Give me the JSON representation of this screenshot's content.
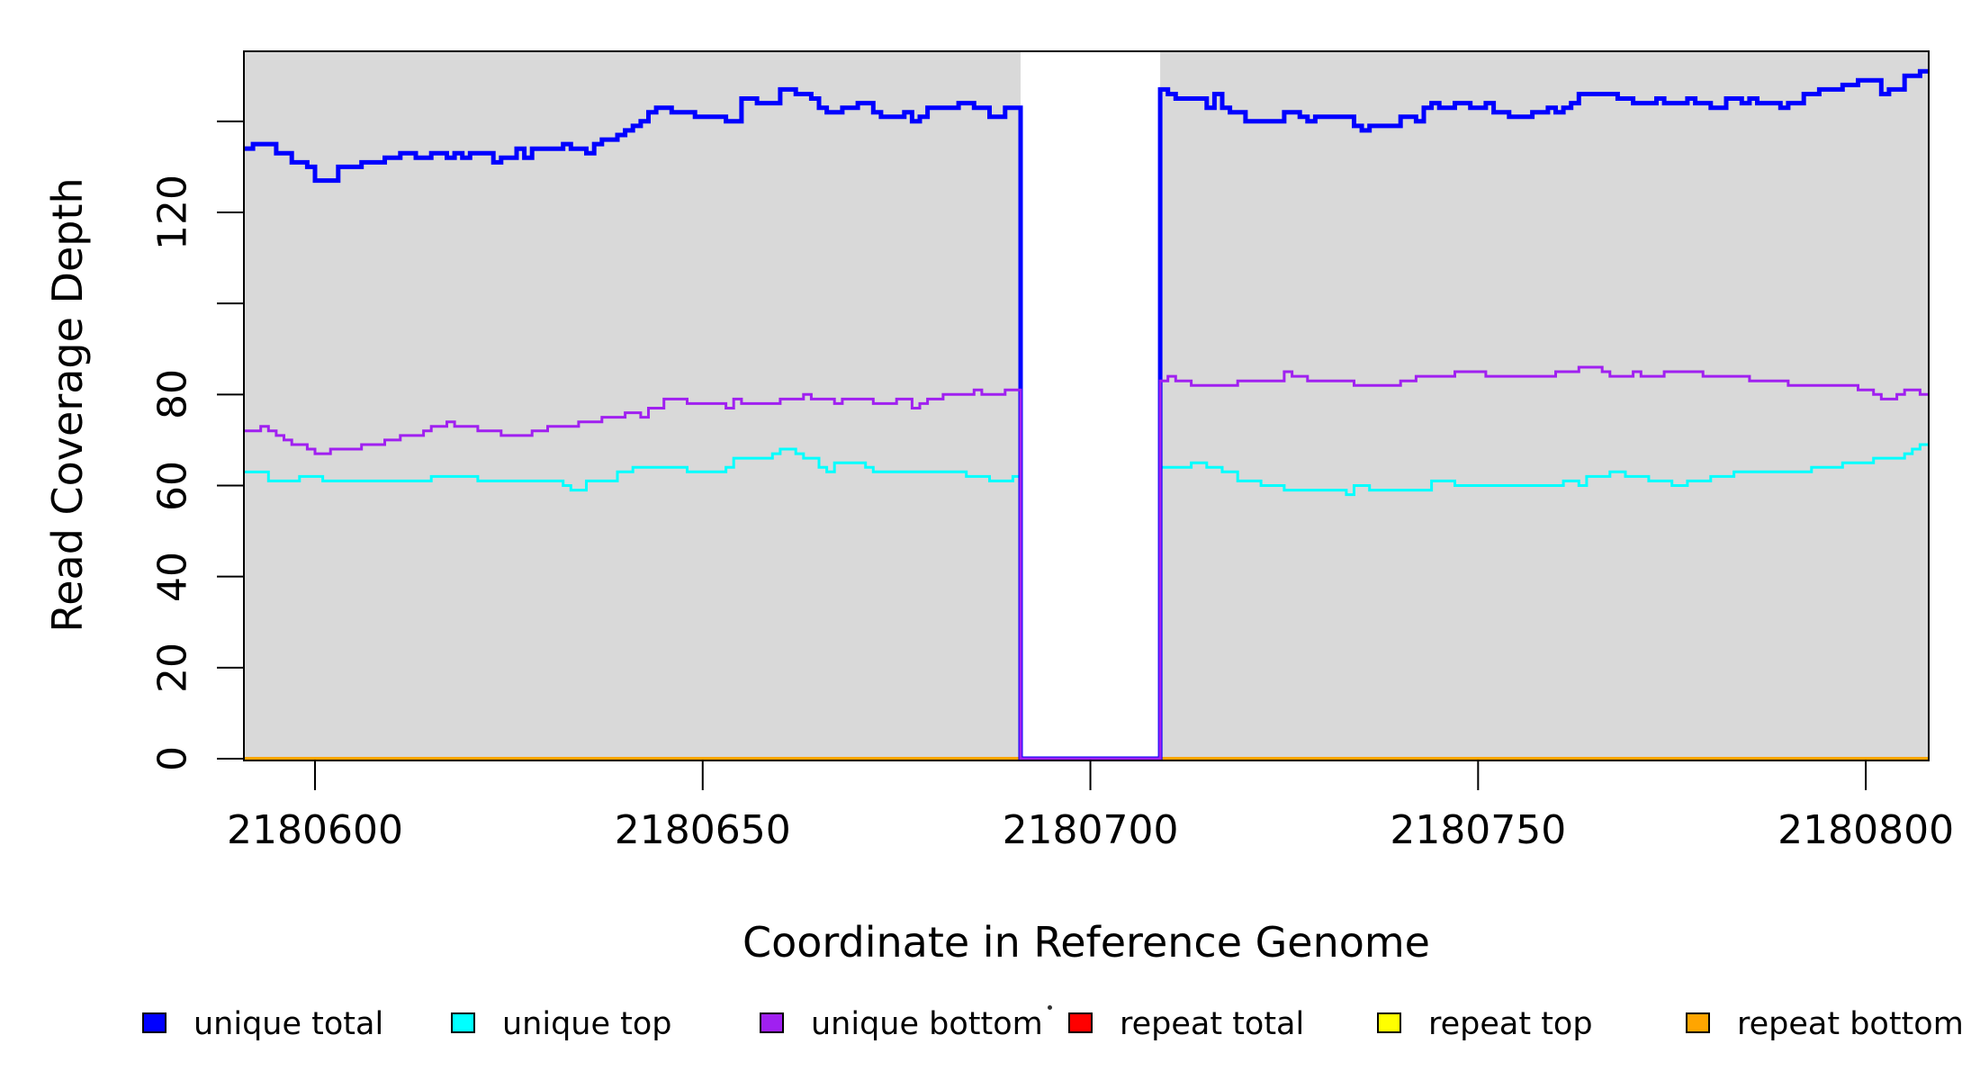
{
  "y_axis": {
    "title": "Read Coverage Depth",
    "ticks": [
      {
        "value": 0,
        "label": "0"
      },
      {
        "value": 20,
        "label": "20"
      },
      {
        "value": 40,
        "label": "40"
      },
      {
        "value": 60,
        "label": "60"
      },
      {
        "value": 80,
        "label": "80"
      },
      {
        "value": 100,
        "label": ""
      },
      {
        "value": 120,
        "label": "120"
      },
      {
        "value": 140,
        "label": ""
      }
    ]
  },
  "x_axis": {
    "title": "Coordinate in Reference Genome",
    "ticks": [
      {
        "value": 2180600,
        "label": "2180600"
      },
      {
        "value": 2180650,
        "label": "2180650"
      },
      {
        "value": 2180700,
        "label": "2180700"
      },
      {
        "value": 2180750,
        "label": "2180750"
      },
      {
        "value": 2180800,
        "label": "2180800"
      }
    ]
  },
  "legend": {
    "items": [
      {
        "label": "unique total",
        "color": "#0000FF"
      },
      {
        "label": "unique top",
        "color": "#00FFFF"
      },
      {
        "label": "unique bottom",
        "color": "#A020F0"
      },
      {
        "label": "repeat total",
        "color": "#FF0000"
      },
      {
        "label": "repeat top",
        "color": "#FFFF00"
      },
      {
        "label": "repeat bottom",
        "color": "#FFA500"
      }
    ]
  },
  "chart_data": {
    "type": "line",
    "subtype": "step",
    "title": "",
    "xlabel": "Coordinate in Reference Genome",
    "ylabel": "Read Coverage Depth",
    "x_start": 2180591,
    "x_step": 1,
    "xlim": [
      2180591,
      2180809
    ],
    "ylim": [
      0,
      155
    ],
    "grid": false,
    "legend_position": "bottom-horizontal",
    "plot_background": "#D9D9D9",
    "zero_gap": {
      "x_start": 2180691,
      "x_end": 2180708,
      "color": "#FFFFFF"
    },
    "series": [
      {
        "name": "repeat total",
        "color": "#FF0000",
        "width": 3,
        "constant": 0
      },
      {
        "name": "repeat top",
        "color": "#FFFF00",
        "width": 3,
        "constant": 0
      },
      {
        "name": "repeat bottom",
        "color": "#FFA500",
        "width": 4,
        "constant": 0
      },
      {
        "name": "unique top",
        "color": "#00FFFF",
        "width": 3,
        "values": [
          63,
          63,
          63,
          61,
          61,
          61,
          61,
          62,
          62,
          62,
          61,
          61,
          61,
          61,
          61,
          61,
          61,
          61,
          61,
          61,
          61,
          61,
          61,
          61,
          62,
          62,
          62,
          62,
          62,
          62,
          61,
          61,
          61,
          61,
          61,
          61,
          61,
          61,
          61,
          61,
          61,
          60,
          59,
          59,
          61,
          61,
          61,
          61,
          63,
          63,
          64,
          64,
          64,
          64,
          64,
          64,
          64,
          63,
          63,
          63,
          63,
          63,
          64,
          66,
          66,
          66,
          66,
          66,
          67,
          68,
          68,
          67,
          66,
          66,
          64,
          63,
          65,
          65,
          65,
          65,
          64,
          63,
          63,
          63,
          63,
          63,
          63,
          63,
          63,
          63,
          63,
          63,
          63,
          62,
          62,
          62,
          61,
          61,
          61,
          62,
          0,
          0,
          0,
          0,
          0,
          0,
          0,
          0,
          0,
          0,
          0,
          0,
          0,
          0,
          0,
          0,
          0,
          0,
          64,
          64,
          64,
          64,
          65,
          65,
          64,
          64,
          63,
          63,
          61,
          61,
          61,
          60,
          60,
          60,
          59,
          59,
          59,
          59,
          59,
          59,
          59,
          59,
          58,
          60,
          60,
          59,
          59,
          59,
          59,
          59,
          59,
          59,
          59,
          61,
          61,
          61,
          60,
          60,
          60,
          60,
          60,
          60,
          60,
          60,
          60,
          60,
          60,
          60,
          60,
          60,
          61,
          61,
          60,
          62,
          62,
          62,
          63,
          63,
          62,
          62,
          62,
          61,
          61,
          61,
          60,
          60,
          61,
          61,
          61,
          62,
          62,
          62,
          63,
          63,
          63,
          63,
          63,
          63,
          63,
          63,
          63,
          63,
          64,
          64,
          64,
          64,
          65,
          65,
          65,
          65,
          66,
          66,
          66,
          66,
          67,
          68,
          69,
          69
        ]
      },
      {
        "name": "unique total",
        "color": "#0000FF",
        "width": 5,
        "values": [
          134,
          135,
          135,
          135,
          133,
          133,
          131,
          131,
          130,
          127,
          127,
          127,
          130,
          130,
          130,
          131,
          131,
          131,
          132,
          132,
          133,
          133,
          132,
          132,
          133,
          133,
          132,
          133,
          132,
          133,
          133,
          133,
          131,
          132,
          132,
          134,
          132,
          134,
          134,
          134,
          134,
          135,
          134,
          134,
          133,
          135,
          136,
          136,
          137,
          138,
          139,
          140,
          142,
          143,
          143,
          142,
          142,
          142,
          141,
          141,
          141,
          141,
          140,
          140,
          145,
          145,
          144,
          144,
          144,
          147,
          147,
          146,
          146,
          145,
          143,
          142,
          142,
          143,
          143,
          144,
          144,
          142,
          141,
          141,
          141,
          142,
          140,
          141,
          143,
          143,
          143,
          143,
          144,
          144,
          143,
          143,
          141,
          141,
          143,
          143,
          0,
          0,
          0,
          0,
          0,
          0,
          0,
          0,
          0,
          0,
          0,
          0,
          0,
          0,
          0,
          0,
          0,
          0,
          147,
          146,
          145,
          145,
          145,
          145,
          143,
          146,
          143,
          142,
          142,
          140,
          140,
          140,
          140,
          140,
          142,
          142,
          141,
          140,
          141,
          141,
          141,
          141,
          141,
          139,
          138,
          139,
          139,
          139,
          139,
          141,
          141,
          140,
          143,
          144,
          143,
          143,
          144,
          144,
          143,
          143,
          144,
          142,
          142,
          141,
          141,
          141,
          142,
          142,
          143,
          142,
          143,
          144,
          146,
          146,
          146,
          146,
          146,
          145,
          145,
          144,
          144,
          144,
          145,
          144,
          144,
          144,
          145,
          144,
          144,
          143,
          143,
          145,
          145,
          144,
          145,
          144,
          144,
          144,
          143,
          144,
          144,
          146,
          146,
          147,
          147,
          147,
          148,
          148,
          149,
          149,
          149,
          146,
          147,
          147,
          150,
          150,
          151,
          151
        ]
      },
      {
        "name": "unique bottom",
        "color": "#A020F0",
        "width": 3,
        "values": [
          72,
          72,
          73,
          72,
          71,
          70,
          69,
          69,
          68,
          67,
          67,
          68,
          68,
          68,
          68,
          69,
          69,
          69,
          70,
          70,
          71,
          71,
          71,
          72,
          73,
          73,
          74,
          73,
          73,
          73,
          72,
          72,
          72,
          71,
          71,
          71,
          71,
          72,
          72,
          73,
          73,
          73,
          73,
          74,
          74,
          74,
          75,
          75,
          75,
          76,
          76,
          75,
          77,
          77,
          79,
          79,
          79,
          78,
          78,
          78,
          78,
          78,
          77,
          79,
          78,
          78,
          78,
          78,
          78,
          79,
          79,
          79,
          80,
          79,
          79,
          79,
          78,
          79,
          79,
          79,
          79,
          78,
          78,
          78,
          79,
          79,
          77,
          78,
          79,
          79,
          80,
          80,
          80,
          80,
          81,
          80,
          80,
          80,
          81,
          81,
          0,
          0,
          0,
          0,
          0,
          0,
          0,
          0,
          0,
          0,
          0,
          0,
          0,
          0,
          0,
          0,
          0,
          0,
          83,
          84,
          83,
          83,
          82,
          82,
          82,
          82,
          82,
          82,
          83,
          83,
          83,
          83,
          83,
          83,
          85,
          84,
          84,
          83,
          83,
          83,
          83,
          83,
          83,
          82,
          82,
          82,
          82,
          82,
          82,
          83,
          83,
          84,
          84,
          84,
          84,
          84,
          85,
          85,
          85,
          85,
          84,
          84,
          84,
          84,
          84,
          84,
          84,
          84,
          84,
          85,
          85,
          85,
          86,
          86,
          86,
          85,
          84,
          84,
          84,
          85,
          84,
          84,
          84,
          85,
          85,
          85,
          85,
          85,
          84,
          84,
          84,
          84,
          84,
          84,
          83,
          83,
          83,
          83,
          83,
          82,
          82,
          82,
          82,
          82,
          82,
          82,
          82,
          82,
          81,
          81,
          80,
          79,
          79,
          80,
          81,
          81,
          80,
          80
        ]
      }
    ]
  },
  "annotations": {
    "stray_mark": "small dark dot left of repeat total swatch"
  }
}
